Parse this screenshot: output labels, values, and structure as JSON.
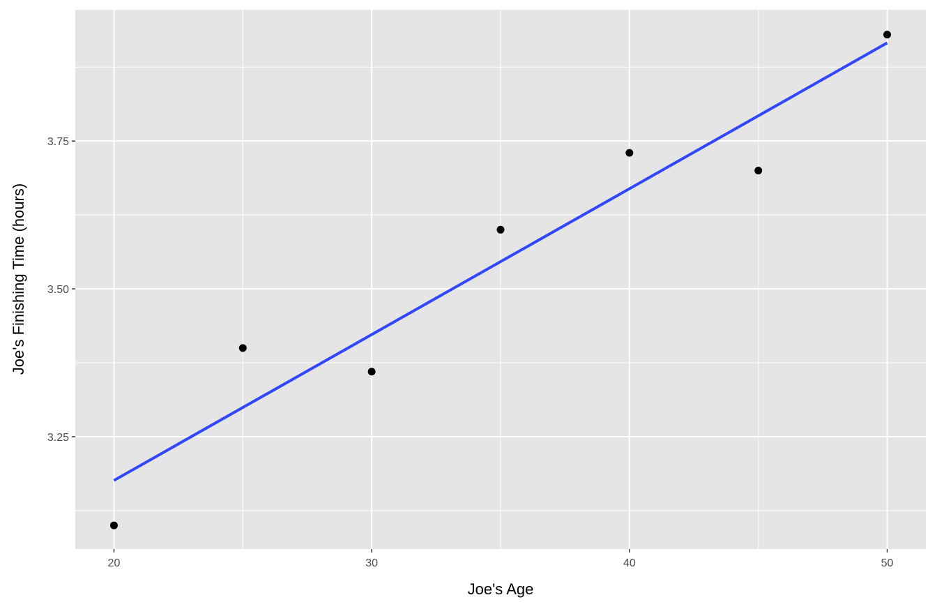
{
  "chart_data": {
    "type": "scatter",
    "title": "",
    "xlabel": "Joe's Age",
    "ylabel": "Joe's Finishing Time (hours)",
    "xlim": [
      18.5,
      51.5
    ],
    "ylim": [
      3.06,
      3.972
    ],
    "x_ticks": [
      "20",
      "30",
      "40",
      "50"
    ],
    "y_ticks": [
      "3.25",
      "3.50",
      "3.75"
    ],
    "grid": true,
    "x": [
      20,
      25,
      30,
      35,
      40,
      45,
      50
    ],
    "y": [
      3.1,
      3.4,
      3.36,
      3.6,
      3.73,
      3.7,
      3.93
    ],
    "trend_line": {
      "type": "linear",
      "x": [
        20,
        50
      ],
      "y": [
        3.176,
        3.916
      ]
    },
    "colors": {
      "panel": "#e5e5e5",
      "grid": "#ffffff",
      "point": "#000000",
      "line": "#3047ff"
    }
  }
}
